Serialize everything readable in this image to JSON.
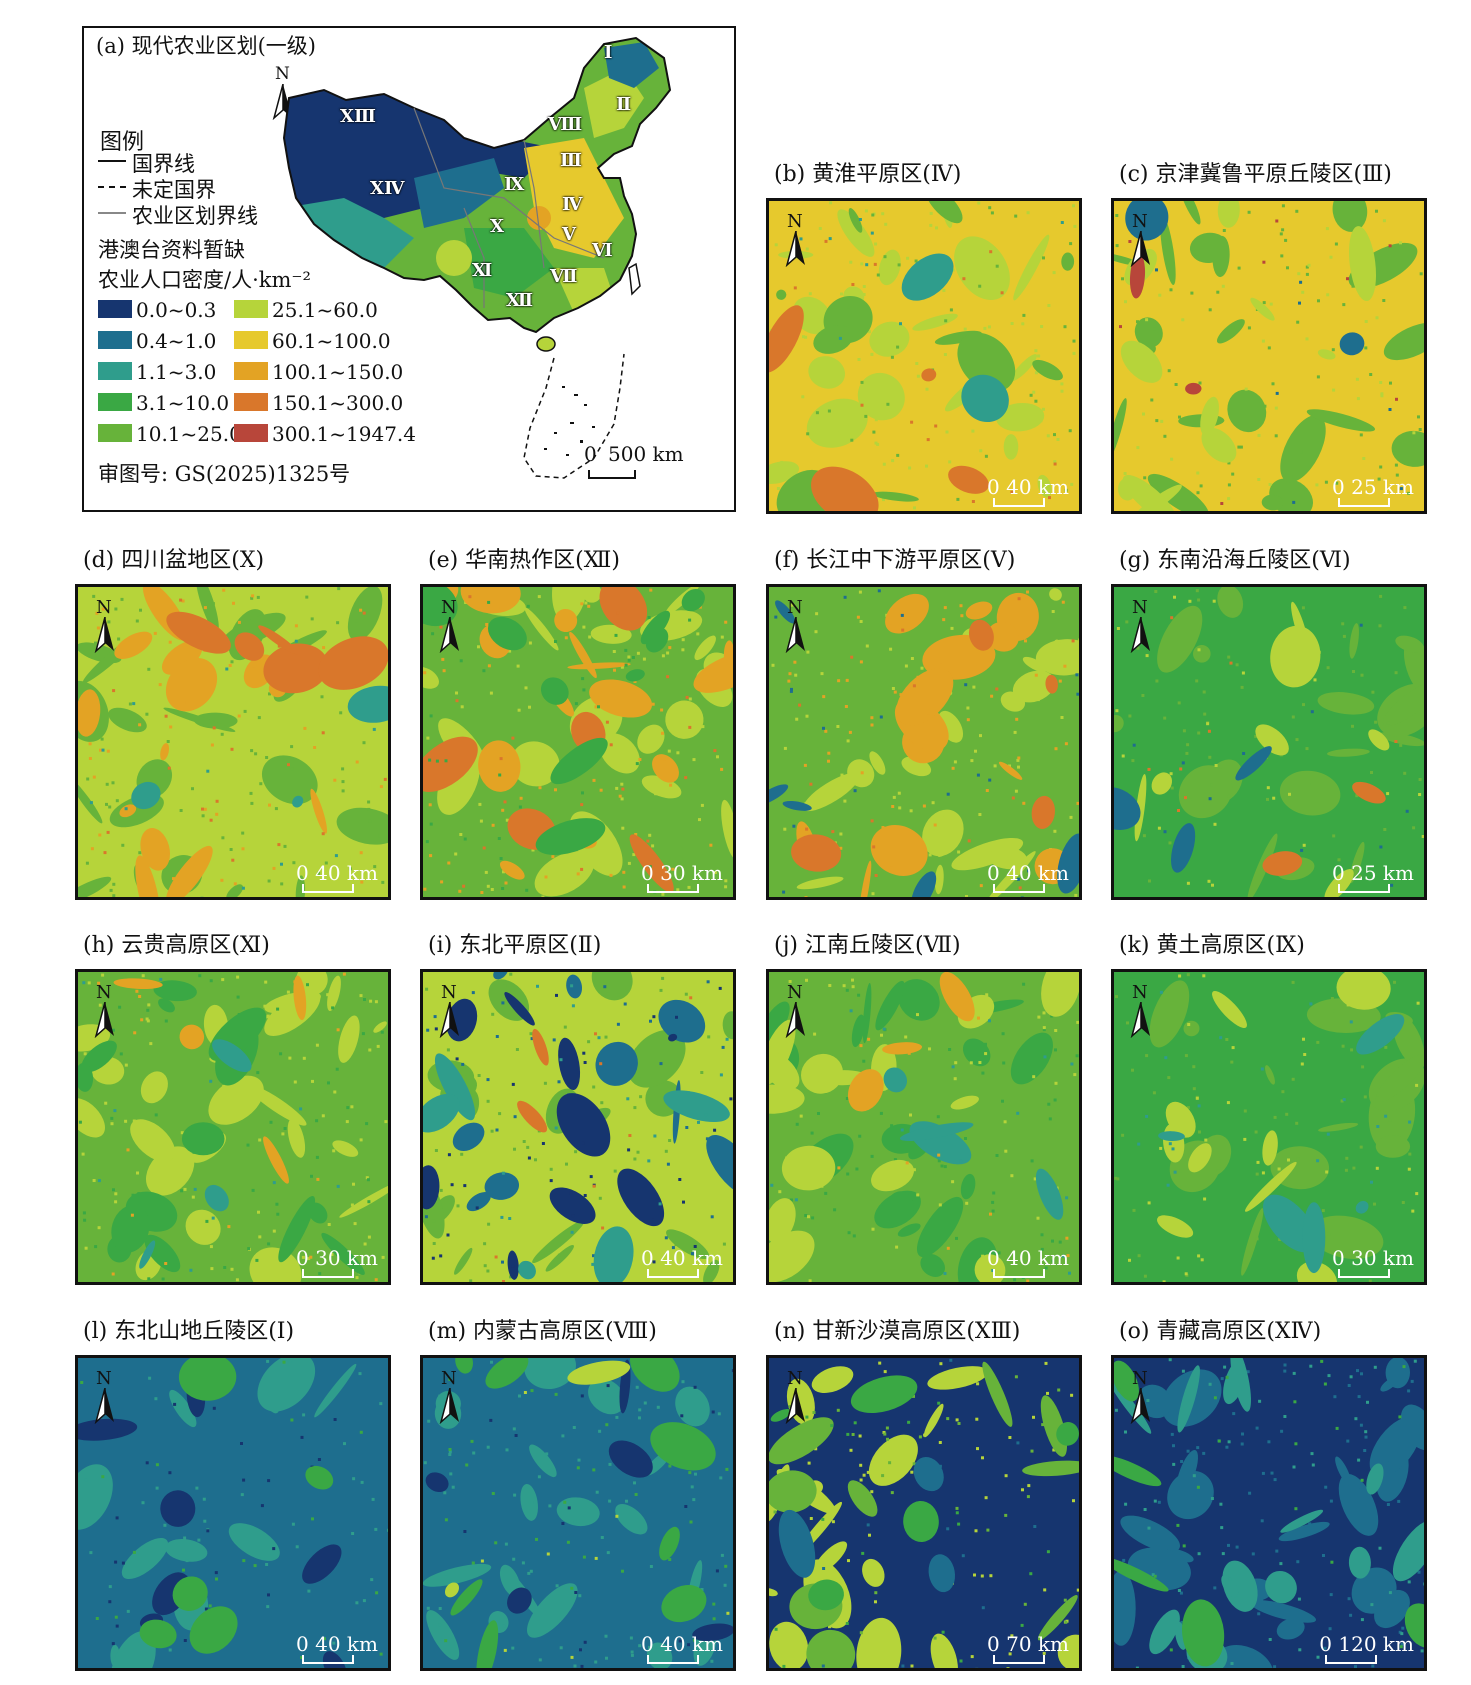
{
  "colors": {
    "c1": "#16356f",
    "c2": "#1e6e8e",
    "c3": "#2f9d8c",
    "c4": "#3aa844",
    "c5": "#67b33a",
    "c6": "#b6d43a",
    "c7": "#e6c92d",
    "c8": "#e3a324",
    "c9": "#d9772b",
    "c10": "#b8463a"
  },
  "main_map": {
    "caption": "(a) 现代农业区划(一级)",
    "north": "N",
    "legend_title": "图例",
    "line_national": "国界线",
    "line_undetermined": "未定国界",
    "line_zone": "农业区划界线",
    "note_hmt": "港澳台资料暂缺",
    "density_label": "农业人口密度/人·km⁻²",
    "legend": [
      {
        "label": "0.0~0.3",
        "color": "#16356f"
      },
      {
        "label": "0.4~1.0",
        "color": "#1e6e8e"
      },
      {
        "label": "1.1~3.0",
        "color": "#2f9d8c"
      },
      {
        "label": "3.1~10.0",
        "color": "#3aa844"
      },
      {
        "label": "10.1~25.0",
        "color": "#67b33a"
      },
      {
        "label": "25.1~60.0",
        "color": "#b6d43a"
      },
      {
        "label": "60.1~100.0",
        "color": "#e6c92d"
      },
      {
        "label": "100.1~150.0",
        "color": "#e3a324"
      },
      {
        "label": "150.1~300.0",
        "color": "#d9772b"
      },
      {
        "label": "300.1~1947.4",
        "color": "#b8463a"
      }
    ],
    "review_no": "审图号: GS(2025)1325号",
    "scale_zero": "0",
    "scale_text": "500 km",
    "zones": [
      "Ⅰ",
      "Ⅱ",
      "Ⅲ",
      "Ⅳ",
      "Ⅴ",
      "Ⅵ",
      "Ⅶ",
      "Ⅷ",
      "Ⅸ",
      "Ⅹ",
      "Ⅺ",
      "Ⅻ",
      "ⅩⅢ",
      "ⅩⅣ"
    ]
  },
  "panels": {
    "b": {
      "caption": "(b) 黄淮平原区(Ⅳ)",
      "scale_zero": "0",
      "scale_text": "40 km",
      "north": "N"
    },
    "c": {
      "caption": "(c) 京津冀鲁平原丘陵区(Ⅲ)",
      "scale_zero": "0",
      "scale_text": "25 km",
      "north": "N"
    },
    "d": {
      "caption": "(d) 四川盆地区(Ⅹ)",
      "scale_zero": "0",
      "scale_text": "40 km",
      "north": "N"
    },
    "e": {
      "caption": "(e) 华南热作区(Ⅻ)",
      "scale_zero": "0",
      "scale_text": "30 km",
      "north": "N"
    },
    "f": {
      "caption": "(f) 长江中下游平原区(Ⅴ)",
      "scale_zero": "0",
      "scale_text": "40 km",
      "north": "N"
    },
    "g": {
      "caption": "(g) 东南沿海丘陵区(Ⅵ)",
      "scale_zero": "0",
      "scale_text": "25 km",
      "north": "N"
    },
    "h": {
      "caption": "(h) 云贵高原区(Ⅺ)",
      "scale_zero": "0",
      "scale_text": "30 km",
      "north": "N"
    },
    "i": {
      "caption": "(i) 东北平原区(Ⅱ)",
      "scale_zero": "0",
      "scale_text": "40 km",
      "north": "N"
    },
    "j": {
      "caption": "(j) 江南丘陵区(Ⅶ)",
      "scale_zero": "0",
      "scale_text": "40 km",
      "north": "N"
    },
    "k": {
      "caption": "(k) 黄土高原区(Ⅸ)",
      "scale_zero": "0",
      "scale_text": "30 km",
      "north": "N"
    },
    "l": {
      "caption": "(l) 东北山地丘陵区(Ⅰ)",
      "scale_zero": "0",
      "scale_text": "40 km",
      "north": "N"
    },
    "m": {
      "caption": "(m) 内蒙古高原区(Ⅷ)",
      "scale_zero": "0",
      "scale_text": "40 km",
      "north": "N"
    },
    "n": {
      "caption": "(n) 甘新沙漠高原区(ⅩⅢ)",
      "scale_zero": "0",
      "scale_text": "70 km",
      "north": "N"
    },
    "o": {
      "caption": "(o) 青藏高原区(ⅩⅣ)",
      "scale_zero": "0",
      "scale_text": "120 km",
      "north": "N"
    }
  }
}
